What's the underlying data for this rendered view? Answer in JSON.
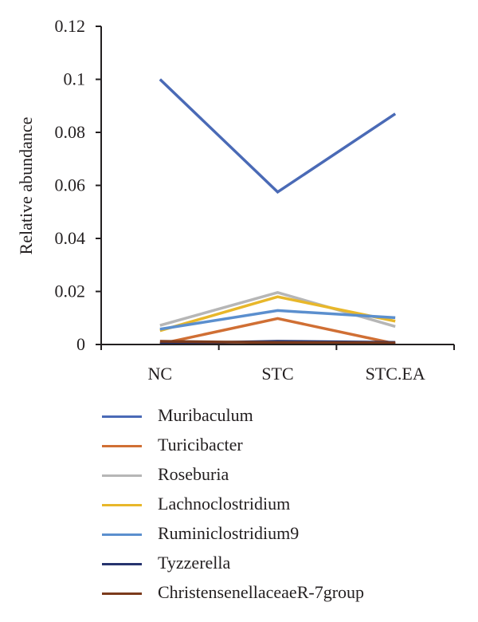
{
  "chart_data": {
    "type": "line",
    "categories": [
      "NC",
      "STC",
      "STC.EA"
    ],
    "ylabel": "Relative abundance",
    "xlabel": "",
    "title": "",
    "ylim": [
      0,
      0.12
    ],
    "yticks": [
      {
        "value": 0,
        "label": "0"
      },
      {
        "value": 0.02,
        "label": "0.02"
      },
      {
        "value": 0.04,
        "label": "0.04"
      },
      {
        "value": 0.06,
        "label": "0.06"
      },
      {
        "value": 0.08,
        "label": "0.08"
      },
      {
        "value": 0.1,
        "label": "0.1"
      },
      {
        "value": 0.12,
        "label": "0.12"
      }
    ],
    "grid": false,
    "legend_position": "bottom",
    "series": [
      {
        "name": "Muribaculum",
        "color": "#4a6ab6",
        "values": [
          0.1,
          0.0575,
          0.087
        ]
      },
      {
        "name": "Turicibacter",
        "color": "#d06f34",
        "values": [
          0.0002,
          0.0098,
          0.0003
        ]
      },
      {
        "name": "Roseburia",
        "color": "#b6b6b6",
        "values": [
          0.0072,
          0.0196,
          0.0068
        ]
      },
      {
        "name": "Lachnoclostridium",
        "color": "#e8b72a",
        "values": [
          0.0052,
          0.018,
          0.0088
        ]
      },
      {
        "name": "Ruminiclostridium9",
        "color": "#5b8fce",
        "values": [
          0.0058,
          0.0128,
          0.0101
        ]
      },
      {
        "name": "Tyzzerella",
        "color": "#26336e",
        "values": [
          0.0004,
          0.0012,
          0.0008
        ]
      },
      {
        "name": "ChristensenellaceaeR-7group",
        "color": "#7b3a1c",
        "values": [
          0.0012,
          0.0007,
          0.0006
        ]
      }
    ]
  }
}
